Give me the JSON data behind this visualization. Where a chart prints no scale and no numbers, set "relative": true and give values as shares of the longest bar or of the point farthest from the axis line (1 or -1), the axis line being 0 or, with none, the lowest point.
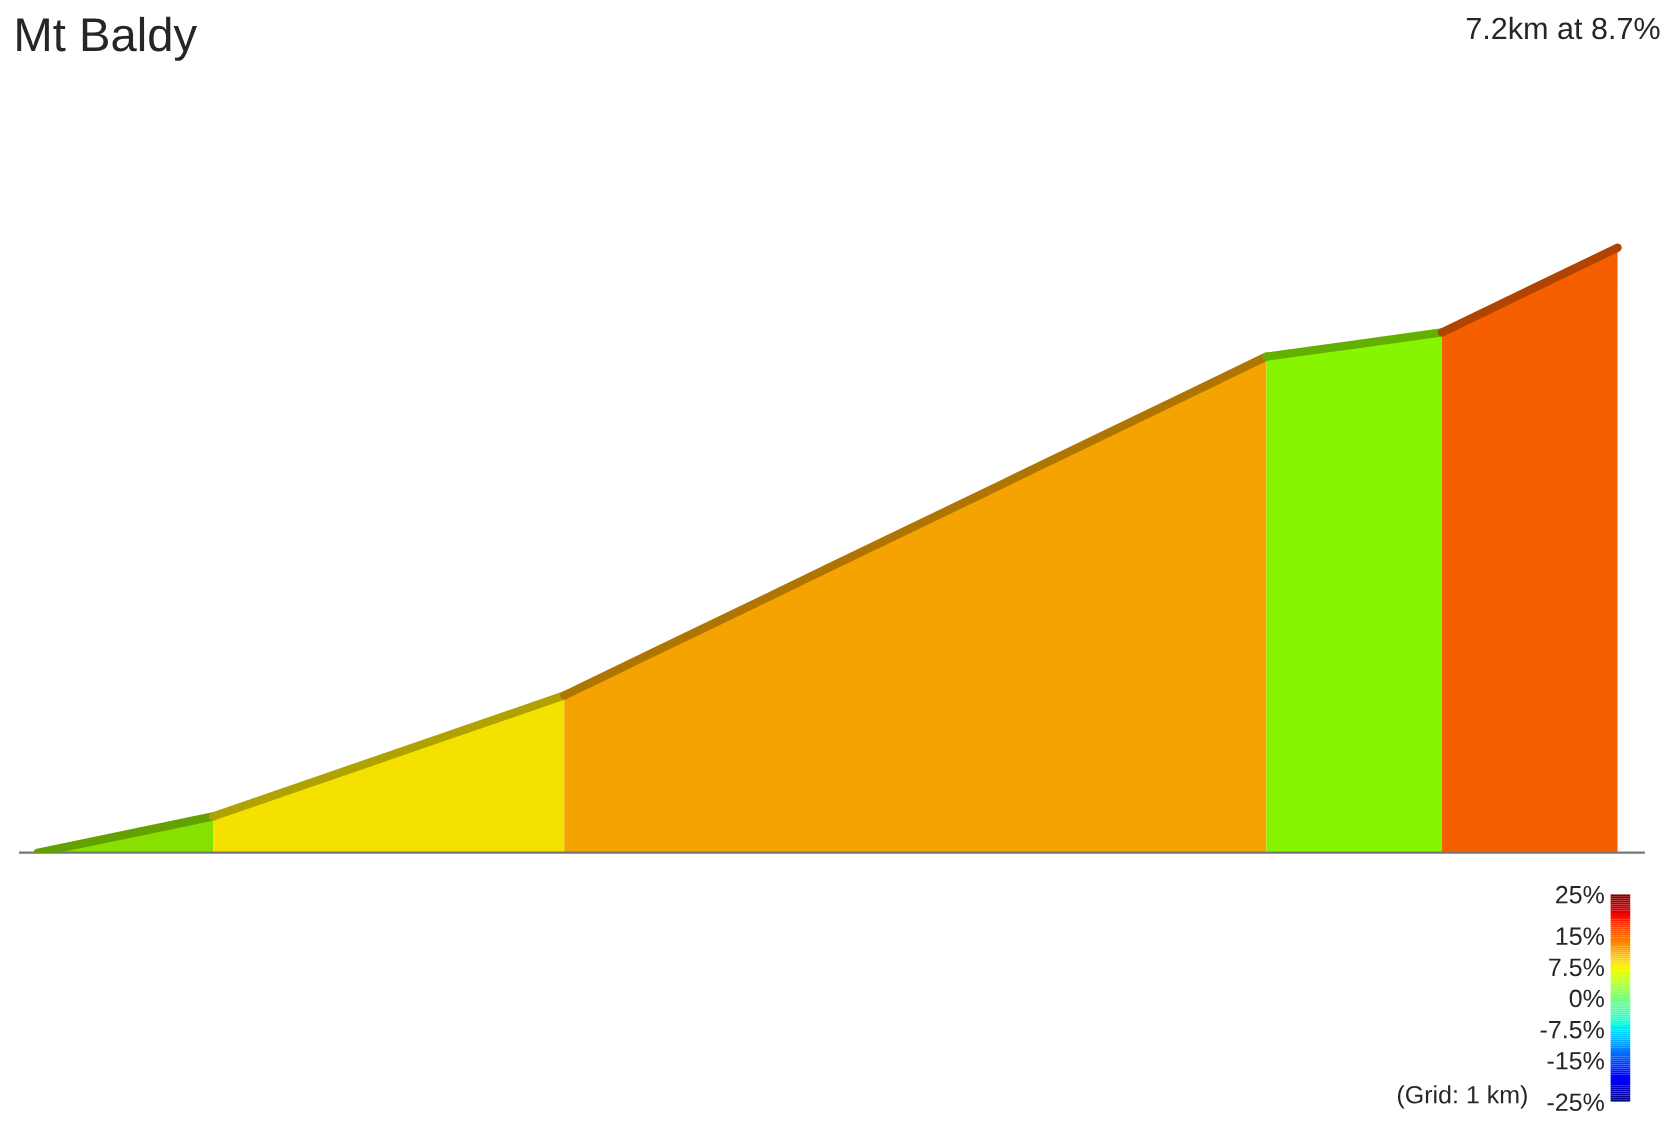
{
  "chart_data": {
    "type": "area",
    "title": "Mt Baldy",
    "subtitle": "7.2km at 8.7%",
    "relative": true,
    "categories": [
      null,
      null,
      null,
      null,
      null,
      null,
      null,
      null,
      null,
      null,
      null,
      null,
      null,
      null,
      null,
      null,
      null,
      null,
      null
    ],
    "series": [
      {
        "color": "#88e000",
        "values": [
          0,
          0.03,
          0.06,
          null,
          null,
          null,
          null,
          null,
          null,
          null,
          null,
          null,
          null,
          null,
          null,
          null,
          null,
          null,
          null
        ]
      },
      {
        "color": "#f5e100",
        "values": [
          null,
          null,
          0.06,
          0.11,
          0.16,
          0.21,
          0.26,
          null,
          null,
          null,
          null,
          null,
          null,
          null,
          null,
          null,
          null,
          null,
          null
        ]
      },
      {
        "color": "#f5a300",
        "values": [
          null,
          null,
          null,
          null,
          null,
          null,
          0.26,
          0.33,
          0.4,
          0.47,
          0.54,
          0.61,
          0.68,
          0.75,
          0.82,
          null,
          null,
          null,
          null
        ]
      },
      {
        "color": "#88f500",
        "values": [
          null,
          null,
          null,
          null,
          null,
          null,
          null,
          null,
          null,
          null,
          null,
          null,
          null,
          null,
          0.82,
          0.84,
          0.86,
          null,
          null
        ]
      },
      {
        "color": "#f55f00",
        "values": [
          null,
          null,
          null,
          null,
          null,
          null,
          null,
          null,
          null,
          null,
          null,
          null,
          null,
          null,
          null,
          null,
          0.86,
          0.93,
          1.0
        ]
      }
    ],
    "clim": [
      -25,
      25
    ],
    "cticks": [
      {
        "value": 25,
        "label": "25%"
      },
      {
        "value": 15,
        "label": "15%"
      },
      {
        "value": 7.5,
        "label": "7.5%"
      },
      {
        "value": 0,
        "label": "0%"
      },
      {
        "value": -7.5,
        "label": "-7.5%"
      },
      {
        "value": -15,
        "label": "-15%"
      },
      {
        "value": -25,
        "label": "-25%"
      }
    ],
    "annotations": [
      "(Grid: 1 km)"
    ]
  }
}
